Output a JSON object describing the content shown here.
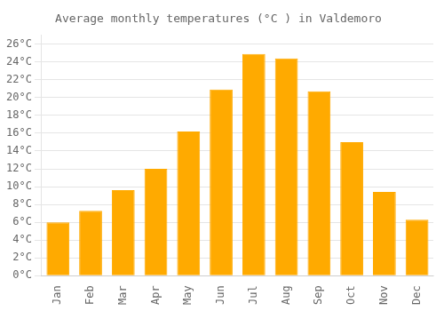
{
  "chart_data": {
    "type": "bar",
    "title": "Average monthly temperatures (°C ) in Valdemoro",
    "categories": [
      "Jan",
      "Feb",
      "Mar",
      "Apr",
      "May",
      "Jun",
      "Jul",
      "Aug",
      "Sep",
      "Oct",
      "Nov",
      "Dec"
    ],
    "values": [
      6.0,
      7.3,
      9.6,
      12.0,
      16.2,
      20.9,
      24.9,
      24.4,
      20.7,
      15.0,
      9.4,
      6.3
    ],
    "color": "#FFAA00",
    "ylim": [
      0,
      27
    ],
    "yticks": [
      {
        "value": 0,
        "label": "0°C"
      },
      {
        "value": 2,
        "label": "2°C"
      },
      {
        "value": 4,
        "label": "4°C"
      },
      {
        "value": 6,
        "label": "6°C"
      },
      {
        "value": 8,
        "label": "8°C"
      },
      {
        "value": 10,
        "label": "10°C"
      },
      {
        "value": 12,
        "label": "12°C"
      },
      {
        "value": 14,
        "label": "14°C"
      },
      {
        "value": 16,
        "label": "16°C"
      },
      {
        "value": 18,
        "label": "18°C"
      },
      {
        "value": 20,
        "label": "20°C"
      },
      {
        "value": 22,
        "label": "22°C"
      },
      {
        "value": 24,
        "label": "24°C"
      },
      {
        "value": 26,
        "label": "26°C"
      }
    ],
    "grid": true
  }
}
